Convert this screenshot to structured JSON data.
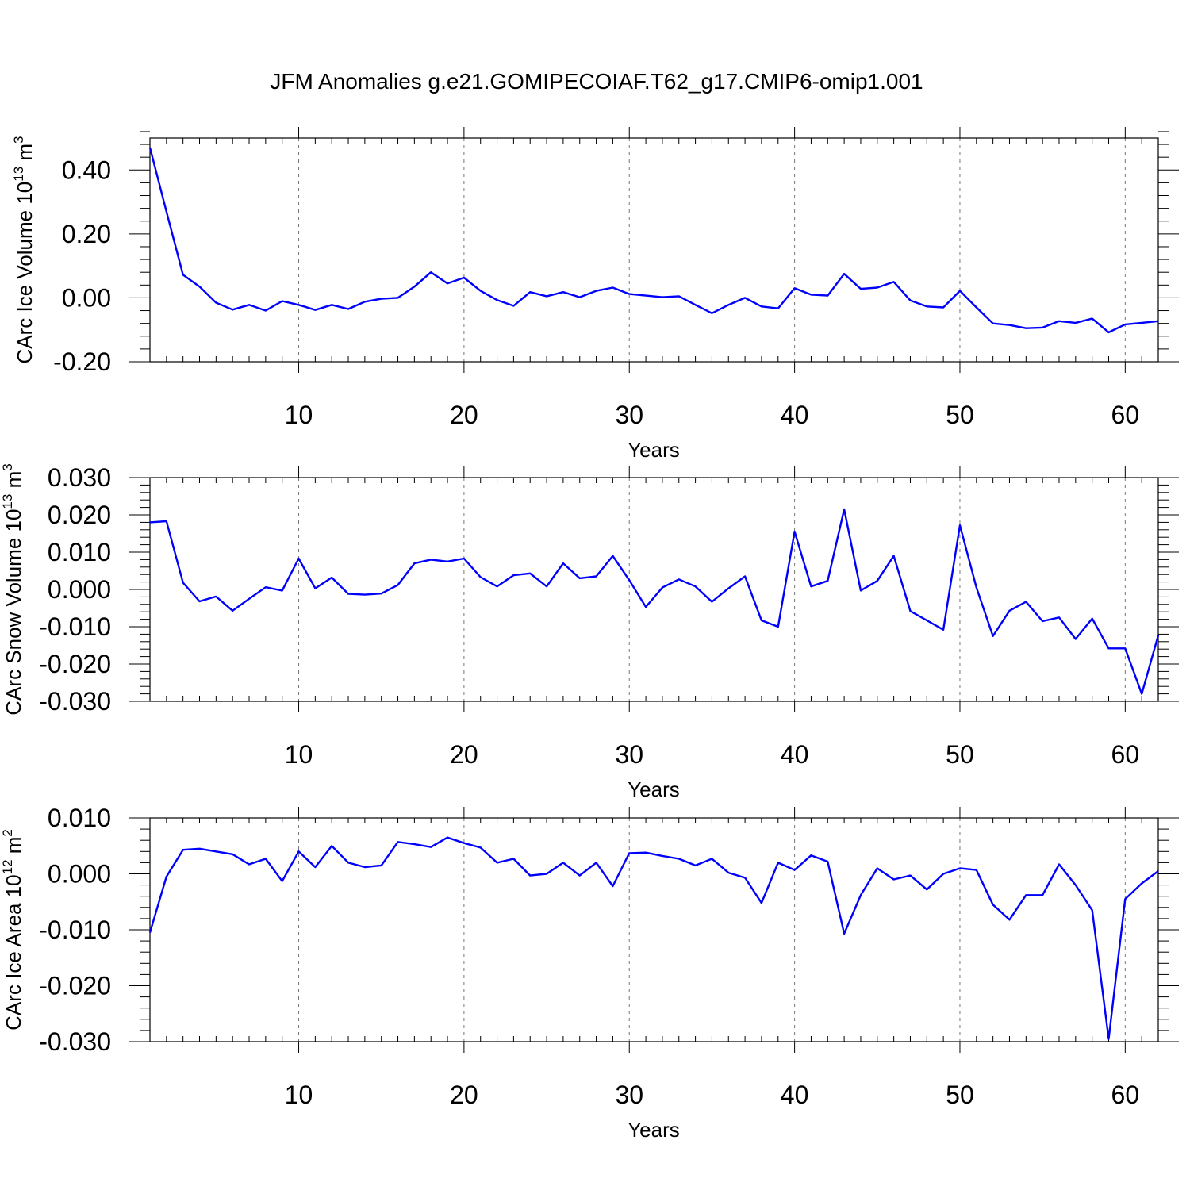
{
  "chart_data": [
    {
      "type": "line",
      "title": "JFM Anomalies g.e21.GOMIPECOIAF.T62_g17.CMIP6-omip1.001",
      "xlabel": "Years",
      "ylabel": {
        "text": "CArc Ice Volume 10",
        "exp": "13",
        "unit": " m",
        "unit_exp": "3"
      },
      "xlim": [
        1,
        62
      ],
      "ylim": [
        -0.2,
        0.5
      ],
      "xticks": [
        10,
        20,
        30,
        40,
        50,
        60
      ],
      "xtick_labels": [
        "10",
        "20",
        "30",
        "40",
        "50",
        "60"
      ],
      "yticks": [
        -0.2,
        0.0,
        0.2,
        0.4
      ],
      "ytick_labels": [
        "-0.20",
        "0.00",
        "0.20",
        "0.40"
      ],
      "grid": "vertical dashed at major x ticks",
      "color": "#0000ff",
      "x": [
        1,
        2,
        3,
        4,
        5,
        6,
        7,
        8,
        9,
        10,
        11,
        12,
        13,
        14,
        15,
        16,
        17,
        18,
        19,
        20,
        21,
        22,
        23,
        24,
        25,
        26,
        27,
        28,
        29,
        30,
        31,
        32,
        33,
        34,
        35,
        36,
        37,
        38,
        39,
        40,
        41,
        42,
        43,
        44,
        45,
        46,
        47,
        48,
        49,
        50,
        51,
        52,
        53,
        54,
        55,
        56,
        57,
        58,
        59,
        60,
        61,
        62
      ],
      "y": [
        0.47,
        0.27,
        0.072,
        0.035,
        -0.015,
        -0.037,
        -0.022,
        -0.04,
        -0.01,
        -0.022,
        -0.038,
        -0.022,
        -0.035,
        -0.012,
        -0.003,
        0.0,
        0.035,
        0.08,
        0.045,
        0.063,
        0.022,
        -0.007,
        -0.025,
        0.018,
        0.005,
        0.018,
        0.002,
        0.022,
        0.032,
        0.012,
        0.007,
        0.002,
        0.005,
        -0.022,
        -0.048,
        -0.022,
        0.0,
        -0.027,
        -0.033,
        0.03,
        0.01,
        0.007,
        0.075,
        0.028,
        0.032,
        0.05,
        -0.008,
        -0.027,
        -0.03,
        0.022,
        -0.03,
        -0.08,
        -0.085,
        -0.095,
        -0.093,
        -0.073,
        -0.078,
        -0.065,
        -0.108,
        -0.083,
        -0.078,
        -0.073
      ]
    },
    {
      "type": "line",
      "xlabel": "Years",
      "ylabel": {
        "text": "CArc Snow Volume 10",
        "exp": "13",
        "unit": " m",
        "unit_exp": "3"
      },
      "xlim": [
        1,
        62
      ],
      "ylim": [
        -0.03,
        0.03
      ],
      "xticks": [
        10,
        20,
        30,
        40,
        50,
        60
      ],
      "xtick_labels": [
        "10",
        "20",
        "30",
        "40",
        "50",
        "60"
      ],
      "yticks": [
        -0.03,
        -0.02,
        -0.01,
        0.0,
        0.01,
        0.02,
        0.03
      ],
      "ytick_labels": [
        "-0.030",
        "-0.020",
        "-0.010",
        "0.000",
        "0.010",
        "0.020",
        "0.030"
      ],
      "grid": "vertical dashed at major x ticks",
      "color": "#0000ff",
      "x": [
        1,
        2,
        3,
        4,
        5,
        6,
        7,
        8,
        9,
        10,
        11,
        12,
        13,
        14,
        15,
        16,
        17,
        18,
        19,
        20,
        21,
        22,
        23,
        24,
        25,
        26,
        27,
        28,
        29,
        30,
        31,
        32,
        33,
        34,
        35,
        36,
        37,
        38,
        39,
        40,
        41,
        42,
        43,
        44,
        45,
        46,
        47,
        48,
        49,
        50,
        51,
        52,
        53,
        54,
        55,
        56,
        57,
        58,
        59,
        60,
        61,
        62
      ],
      "y": [
        0.018,
        0.0183,
        0.0018,
        -0.0032,
        -0.0019,
        -0.0057,
        -0.0025,
        0.0006,
        -0.0003,
        0.0083,
        0.0003,
        0.0032,
        -0.0012,
        -0.0014,
        -0.0011,
        0.0012,
        0.007,
        0.008,
        0.0075,
        0.0083,
        0.0033,
        0.0008,
        0.0038,
        0.0043,
        0.0008,
        0.007,
        0.003,
        0.0035,
        0.009,
        0.0025,
        -0.0047,
        0.0005,
        0.0027,
        0.0008,
        -0.0033,
        0.0003,
        0.0035,
        -0.0083,
        -0.01,
        0.0155,
        0.0008,
        0.0023,
        0.0215,
        -0.0003,
        0.0023,
        0.009,
        -0.0058,
        -0.0083,
        -0.0108,
        0.0172,
        0.0005,
        -0.0125,
        -0.0057,
        -0.0033,
        -0.0085,
        -0.0075,
        -0.0133,
        -0.0078,
        -0.0158,
        -0.0158,
        -0.028,
        -0.0123
      ]
    },
    {
      "type": "line",
      "xlabel": "Years",
      "ylabel": {
        "text": "CArc Ice Area 10",
        "exp": "12",
        "unit": " m",
        "unit_exp": "2"
      },
      "xlim": [
        1,
        62
      ],
      "ylim": [
        -0.03,
        0.01
      ],
      "xticks": [
        10,
        20,
        30,
        40,
        50,
        60
      ],
      "xtick_labels": [
        "10",
        "20",
        "30",
        "40",
        "50",
        "60"
      ],
      "yticks": [
        -0.03,
        -0.02,
        -0.01,
        0.0,
        0.01
      ],
      "ytick_labels": [
        "-0.030",
        "-0.020",
        "-0.010",
        "0.000",
        "0.010"
      ],
      "grid": "vertical dashed at major x ticks",
      "color": "#0000ff",
      "x": [
        1,
        2,
        3,
        4,
        5,
        6,
        7,
        8,
        9,
        10,
        11,
        12,
        13,
        14,
        15,
        16,
        17,
        18,
        19,
        20,
        21,
        22,
        23,
        24,
        25,
        26,
        27,
        28,
        29,
        30,
        31,
        32,
        33,
        34,
        35,
        36,
        37,
        38,
        39,
        40,
        41,
        42,
        43,
        44,
        45,
        46,
        47,
        48,
        49,
        50,
        51,
        52,
        53,
        54,
        55,
        56,
        57,
        58,
        59,
        60,
        61,
        62
      ],
      "y": [
        -0.0105,
        -0.0005,
        0.0043,
        0.0045,
        0.004,
        0.0035,
        0.0017,
        0.0027,
        -0.0013,
        0.004,
        0.0012,
        0.005,
        0.002,
        0.0012,
        0.0015,
        0.0057,
        0.0053,
        0.0048,
        0.0065,
        0.0055,
        0.0047,
        0.002,
        0.0027,
        -0.0003,
        0.0,
        0.002,
        -0.0003,
        0.002,
        -0.0022,
        0.0037,
        0.0038,
        0.0032,
        0.0027,
        0.0015,
        0.0027,
        0.0002,
        -0.0007,
        -0.0052,
        0.002,
        0.0007,
        0.0033,
        0.0022,
        -0.0107,
        -0.0038,
        0.001,
        -0.001,
        -0.0003,
        -0.0028,
        0.0,
        0.001,
        0.0007,
        -0.0055,
        -0.0082,
        -0.0038,
        -0.0038,
        0.0017,
        -0.002,
        -0.0065,
        -0.0295,
        -0.0045,
        -0.0017,
        0.0005
      ]
    }
  ]
}
